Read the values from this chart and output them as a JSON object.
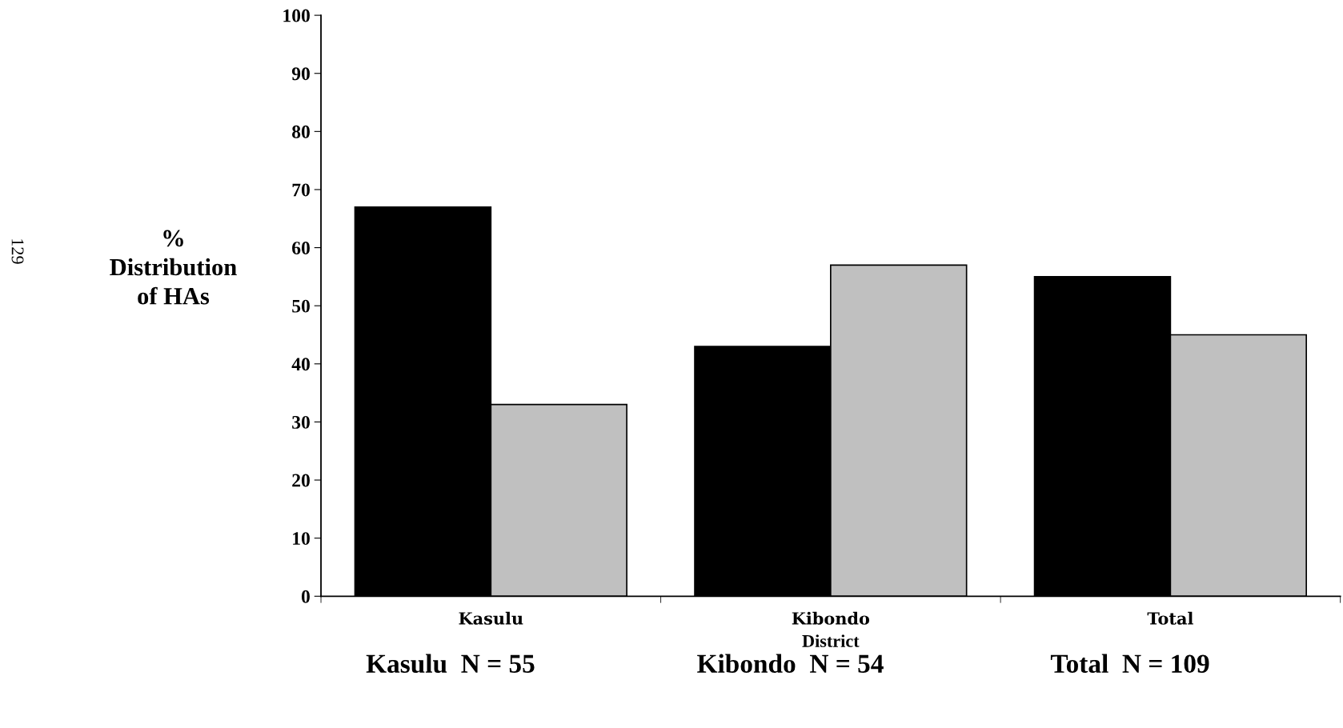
{
  "chart_data": {
    "type": "bar",
    "categories": [
      "Kasulu",
      "Kibondo",
      "Total"
    ],
    "series": [
      {
        "color": "#000000",
        "values": [
          67,
          43,
          55
        ]
      },
      {
        "color": "#c0c0c0",
        "values": [
          33,
          57,
          45
        ]
      }
    ],
    "xlabel": "District",
    "ylabel": "%\nDistribution\nof HAs",
    "ylim": [
      0,
      100
    ],
    "yticks": [
      0,
      10,
      20,
      30,
      40,
      50,
      60,
      70,
      80,
      90,
      100
    ],
    "grid": false,
    "legend": false,
    "annotations": [
      "129",
      "Kasulu  N = 55",
      "Kibondo  N = 54",
      "Total  N = 109"
    ]
  }
}
